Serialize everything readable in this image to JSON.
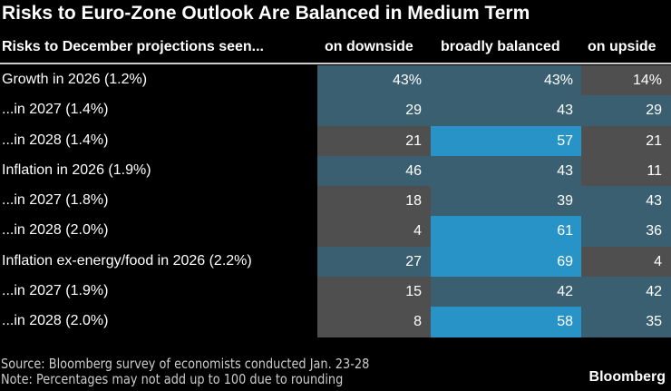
{
  "chart_data": {
    "type": "table",
    "title": "Risks to Euro-Zone Outlook Are Balanced in Medium Term",
    "row_header": "Risks to December projections seen...",
    "columns": [
      "on downside",
      "broadly balanced",
      "on upside"
    ],
    "rows": [
      {
        "label": "Growth in 2026 (1.2%)",
        "values": [
          "43%",
          "43%",
          "14%"
        ]
      },
      {
        "label": "...in 2027 (1.4%)",
        "values": [
          "29",
          "43",
          "29"
        ]
      },
      {
        "label": "...in 2028 (1.4%)",
        "values": [
          "21",
          "57",
          "21"
        ]
      },
      {
        "label": "Inflation in 2026 (1.9%)",
        "values": [
          "46",
          "43",
          "11"
        ]
      },
      {
        "label": "...in 2027 (1.8%)",
        "values": [
          "18",
          "39",
          "43"
        ]
      },
      {
        "label": "...in 2028 (2.0%)",
        "values": [
          "4",
          "61",
          "36"
        ]
      },
      {
        "label": "Inflation ex-energy/food in 2026 (2.2%)",
        "values": [
          "27",
          "69",
          "4"
        ]
      },
      {
        "label": "...in 2027 (1.9%)",
        "values": [
          "15",
          "42",
          "42"
        ]
      },
      {
        "label": "...in 2028 (2.0%)",
        "values": [
          "8",
          "58",
          "35"
        ]
      }
    ],
    "colors": {
      "low": "#4f4f4f",
      "mid": "#3a5f70",
      "high": "#2893c6"
    }
  },
  "footer": {
    "source": "Source: Bloomberg survey of economists conducted Jan. 23-28",
    "note": "Note: Percentages may not add up to 100 due to rounding",
    "logo": "Bloomberg"
  }
}
